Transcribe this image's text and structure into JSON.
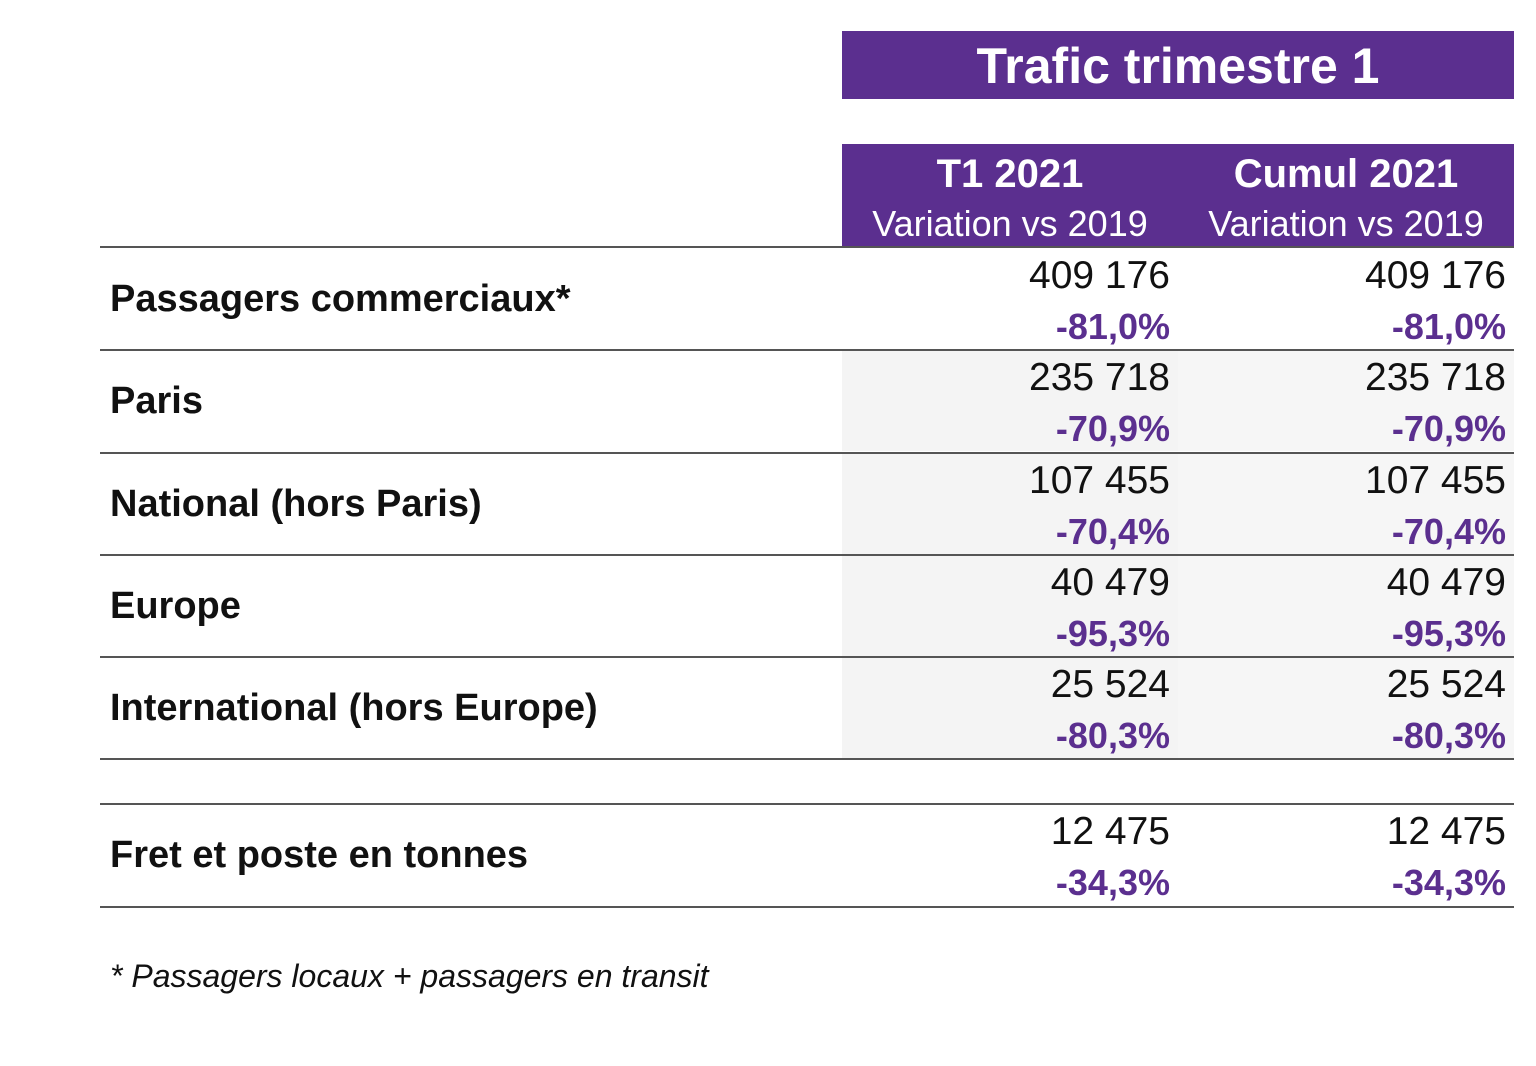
{
  "title": "Trafic trimestre 1",
  "columns": [
    {
      "period": "T1 2021",
      "subtitle": "Variation vs 2019"
    },
    {
      "period": "Cumul 2021",
      "subtitle": "Variation vs 2019"
    }
  ],
  "rows": [
    {
      "label": "Passagers commerciaux*",
      "t1_value": "409 176",
      "t1_variation": "-81,0%",
      "cumul_value": "409 176",
      "cumul_variation": "-81,0%"
    },
    {
      "label": "Paris",
      "t1_value": "235 718",
      "t1_variation": "-70,9%",
      "cumul_value": "235 718",
      "cumul_variation": "-70,9%"
    },
    {
      "label": "National (hors Paris)",
      "t1_value": "107 455",
      "t1_variation": "-70,4%",
      "cumul_value": "107 455",
      "cumul_variation": "-70,4%"
    },
    {
      "label": "Europe",
      "t1_value": "40 479",
      "t1_variation": "-95,3%",
      "cumul_value": "40 479",
      "cumul_variation": "-95,3%"
    },
    {
      "label": "International (hors Europe)",
      "t1_value": "25 524",
      "t1_variation": "-80,3%",
      "cumul_value": "25 524",
      "cumul_variation": "-80,3%"
    }
  ],
  "freight": {
    "label": "Fret et poste en tonnes",
    "t1_value": "12 475",
    "t1_variation": "-34,3%",
    "cumul_value": "12 475",
    "cumul_variation": "-34,3%"
  },
  "footnote": "* Passagers locaux + passagers en transit",
  "colors": {
    "accent": "#5b2f8f",
    "header_text": "#ffffff",
    "text": "#111111",
    "rule": "#555555"
  }
}
